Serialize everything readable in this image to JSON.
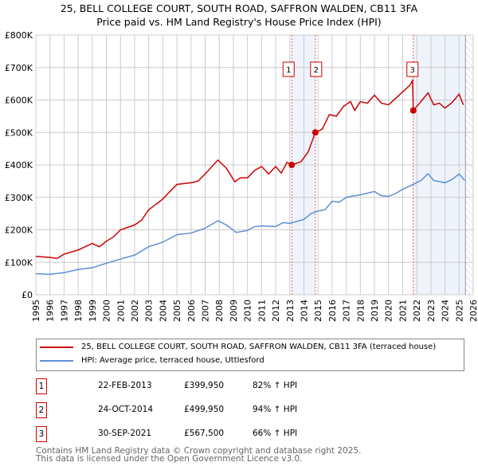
{
  "chart_data": {
    "type": "line",
    "title": "25, BELL COLLEGE COURT, SOUTH ROAD, SAFFRON WALDEN, CB11 3FA",
    "subtitle": "Price paid vs. HM Land Registry's House Price Index (HPI)",
    "xlim": [
      1995,
      2026
    ],
    "ylim": [
      0,
      800000
    ],
    "x_ticks": [
      "1995",
      "1996",
      "1997",
      "1998",
      "1999",
      "2000",
      "2001",
      "2002",
      "2003",
      "2004",
      "2005",
      "2006",
      "2007",
      "2008",
      "2009",
      "2010",
      "2011",
      "2012",
      "2013",
      "2014",
      "2015",
      "2016",
      "2017",
      "2018",
      "2019",
      "2020",
      "2021",
      "2022",
      "2023",
      "2024",
      "2025",
      "2026"
    ],
    "y_ticks": [
      {
        "v": 0,
        "l": "£0"
      },
      {
        "v": 100000,
        "l": "£100K"
      },
      {
        "v": 200000,
        "l": "£200K"
      },
      {
        "v": 300000,
        "l": "£300K"
      },
      {
        "v": 400000,
        "l": "£400K"
      },
      {
        "v": 500000,
        "l": "£500K"
      },
      {
        "v": 600000,
        "l": "£600K"
      },
      {
        "v": 700000,
        "l": "£700K"
      },
      {
        "v": 800000,
        "l": "£800K"
      }
    ],
    "grid": true,
    "series": [
      {
        "name": "25, BELL COLLEGE COURT, SOUTH ROAD, SAFFRON WALDEN, CB11 3FA (terraced house)",
        "color": "#cc0000",
        "x": [
          1995,
          1996,
          1996.5,
          1997,
          1998,
          1999,
          1999.5,
          2000,
          2000.5,
          2001,
          2002,
          2002.5,
          2003,
          2003.5,
          2004,
          2004.5,
          2005,
          2006,
          2006.5,
          2007,
          2007.9,
          2008.5,
          2009.1,
          2009.5,
          2010,
          2010.5,
          2011,
          2011.5,
          2012,
          2012.4,
          2012.8,
          2013.15,
          2013.8,
          2014.3,
          2014.81,
          2015.3,
          2015.8,
          2016.3,
          2016.8,
          2017.3,
          2017.6,
          2018,
          2018.5,
          2019,
          2019.5,
          2020,
          2020.5,
          2021,
          2021.5,
          2021.7,
          2021.75,
          2022.2,
          2022.8,
          2023.2,
          2023.6,
          2024,
          2024.5,
          2025,
          2025.3
        ],
        "y": [
          118000,
          115000,
          112000,
          125000,
          138000,
          158000,
          148000,
          165000,
          178000,
          200000,
          215000,
          230000,
          262000,
          278000,
          295000,
          318000,
          340000,
          345000,
          350000,
          372000,
          415000,
          390000,
          348000,
          360000,
          360000,
          383000,
          395000,
          372000,
          395000,
          375000,
          408000,
          399950,
          410000,
          440000,
          499950,
          510000,
          555000,
          550000,
          580000,
          595000,
          568000,
          595000,
          590000,
          615000,
          590000,
          585000,
          605000,
          625000,
          645000,
          660000,
          567500,
          590000,
          622000,
          585000,
          590000,
          575000,
          592000,
          618000,
          585000
        ]
      },
      {
        "name": "HPI: Average price, terraced house, Uttlesford",
        "color": "#5b8fd4",
        "x": [
          1995,
          1996,
          1997,
          1998,
          1999,
          2000,
          2001,
          2002,
          2003,
          2004,
          2005,
          2006,
          2007,
          2007.9,
          2008.5,
          2009.2,
          2010,
          2010.5,
          2011,
          2012,
          2012.5,
          2013,
          2014,
          2014.5,
          2015,
          2015.5,
          2016,
          2016.5,
          2017,
          2018,
          2019,
          2019.5,
          2020,
          2020.5,
          2021,
          2021.75,
          2022.3,
          2022.8,
          2023.2,
          2024,
          2024.5,
          2025,
          2025.4
        ],
        "y": [
          65000,
          63000,
          68000,
          78000,
          83000,
          97000,
          110000,
          122000,
          148000,
          162000,
          185000,
          190000,
          205000,
          228000,
          215000,
          192000,
          198000,
          210000,
          212000,
          210000,
          222000,
          220000,
          232000,
          250000,
          258000,
          262000,
          288000,
          285000,
          300000,
          308000,
          318000,
          305000,
          303000,
          312000,
          325000,
          340000,
          352000,
          373000,
          352000,
          345000,
          355000,
          372000,
          352000
        ]
      }
    ],
    "sales": [
      {
        "id": "1",
        "x": 2013.14,
        "y": 399950
      },
      {
        "id": "2",
        "x": 2014.81,
        "y": 499950
      },
      {
        "id": "3",
        "x": 2021.75,
        "y": 567500
      }
    ],
    "shaded": [
      [
        2013.14,
        2014.81
      ],
      [
        2021.75,
        2025.45
      ]
    ],
    "hatch_from": 2025.45,
    "legend_placement": "below"
  },
  "sales_table": [
    {
      "id": "1",
      "date": "22-FEB-2013",
      "price": "£399,950",
      "hpi": "82% ↑ HPI"
    },
    {
      "id": "2",
      "date": "24-OCT-2014",
      "price": "£499,950",
      "hpi": "94% ↑ HPI"
    },
    {
      "id": "3",
      "date": "30-SEP-2021",
      "price": "£567,500",
      "hpi": "66% ↑ HPI"
    }
  ],
  "footer": {
    "line1": "Contains HM Land Registry data © Crown copyright and database right 2025.",
    "line2": "This data is licensed under the Open Government Licence v3.0."
  }
}
